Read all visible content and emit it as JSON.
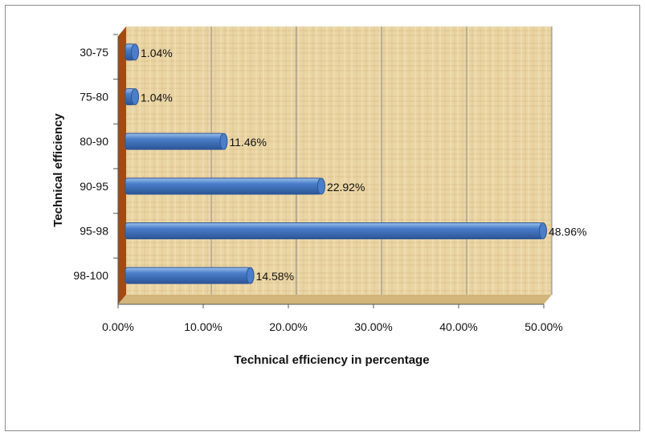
{
  "chart_data": {
    "type": "bar",
    "orientation": "horizontal",
    "title": "",
    "xlabel": "Technical efficiency in percentage",
    "ylabel": "Technical efficiency",
    "categories": [
      "30-75",
      "75-80",
      "80-90",
      "90-95",
      "95-98",
      "98-100"
    ],
    "values": [
      1.04,
      1.04,
      11.46,
      22.92,
      48.96,
      14.58
    ],
    "data_labels": [
      "1.04%",
      "1.04%",
      "11.46%",
      "22.92%",
      "48.96%",
      "14.58%"
    ],
    "xlim": [
      0,
      50
    ],
    "xticks": [
      "0.00%",
      "10.00%",
      "20.00%",
      "30.00%",
      "40.00%",
      "50.00%"
    ],
    "grid": true,
    "legend": "none",
    "colors": {
      "bar": "#4a7ec9",
      "bar_dark": "#2c5597",
      "bar_light": "#9cc0ec",
      "background": "#e9d29f",
      "side_wall": "#a34a10",
      "floor": "#d9bf86"
    }
  }
}
